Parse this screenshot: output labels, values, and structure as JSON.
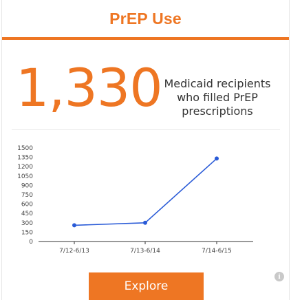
{
  "header": {
    "title": "PrEP Use"
  },
  "stat": {
    "value": "1,330",
    "description": "Medicaid recipients who filled PrEP prescriptions"
  },
  "colors": {
    "accent": "#ee7623",
    "line": "#2a5bd7"
  },
  "chart_data": {
    "type": "line",
    "categories": [
      "7/12-6/13",
      "7/13-6/14",
      "7/14-6/15"
    ],
    "series": [
      {
        "values": [
          260,
          300,
          1330
        ]
      }
    ],
    "y_ticks": [
      0,
      150,
      300,
      450,
      600,
      750,
      900,
      1050,
      1200,
      1350,
      1500
    ],
    "ylim": [
      0,
      1500
    ],
    "grid": false
  },
  "actions": {
    "explore_label": "Explore"
  },
  "icons": {
    "info": "info-icon"
  },
  "info_glyph": "i"
}
